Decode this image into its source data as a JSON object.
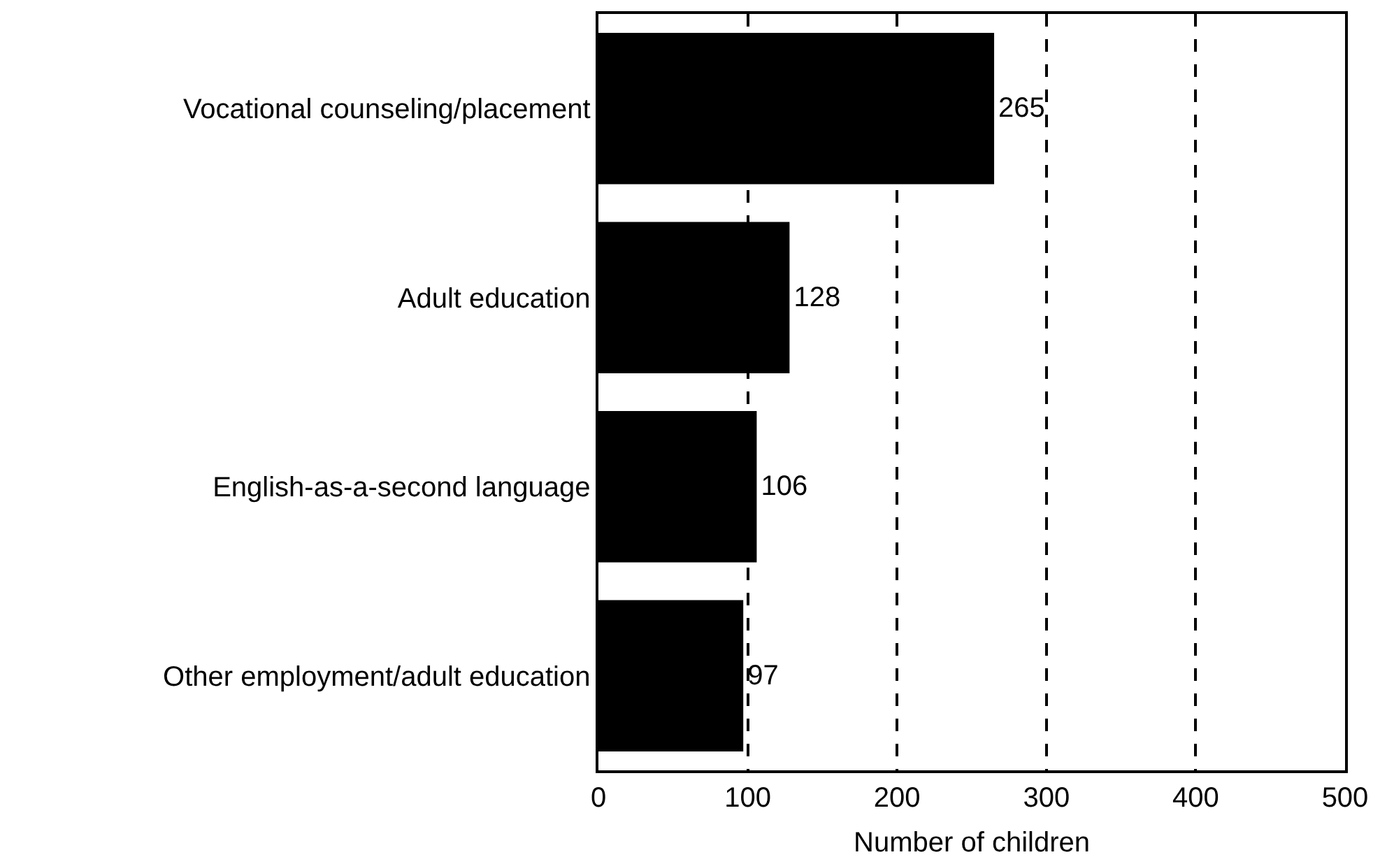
{
  "chart_data": {
    "type": "bar",
    "orientation": "horizontal",
    "categories": [
      "Vocational counseling/placement",
      "Adult education",
      "English-as-a-second language",
      "Other employment/adult education"
    ],
    "values": [
      265,
      128,
      106,
      97
    ],
    "color": "#000000",
    "xlabel": "Number of children",
    "xlim": [
      0,
      500
    ],
    "xticks": [
      0,
      100,
      200,
      300,
      400,
      500
    ],
    "grid": "x",
    "line_style": "dashed",
    "data_labels": true,
    "legend": false
  }
}
